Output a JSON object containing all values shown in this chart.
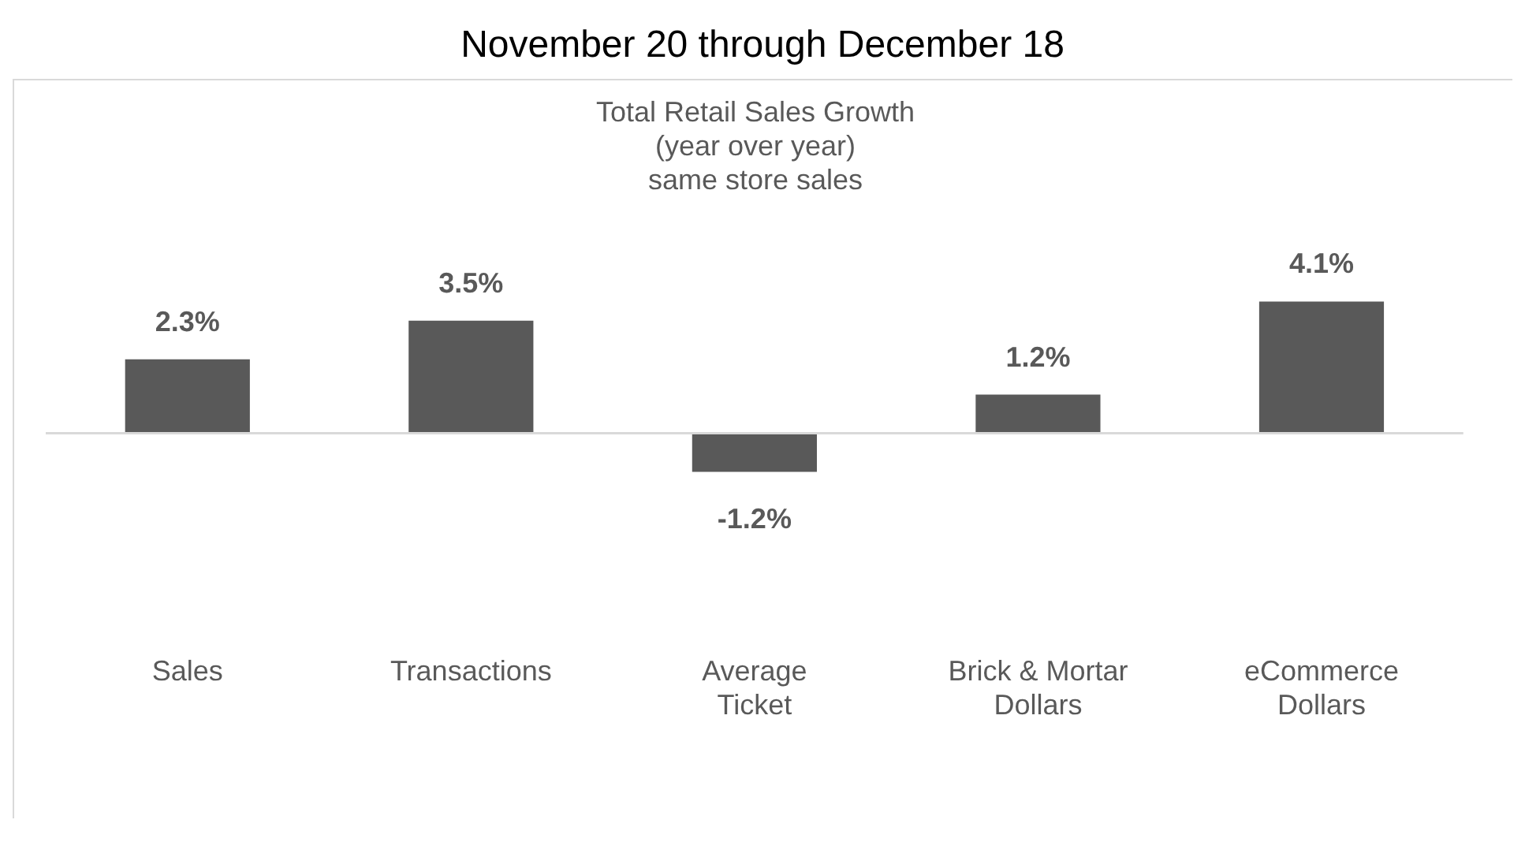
{
  "chart_data": {
    "type": "bar",
    "title": "November 20 through December 18",
    "subtitle": "Total Retail Sales Growth\n(year over year)\nsame store sales",
    "categories": [
      "Sales",
      "Transactions",
      "Average Ticket",
      "Brick & Mortar Dollars",
      "eCommerce Dollars"
    ],
    "values": [
      2.3,
      3.5,
      -1.2,
      1.2,
      4.1
    ],
    "value_labels": [
      "2.3%",
      "3.5%",
      "-1.2%",
      "1.2%",
      "4.1%"
    ],
    "color": "#595959",
    "legend": false
  }
}
